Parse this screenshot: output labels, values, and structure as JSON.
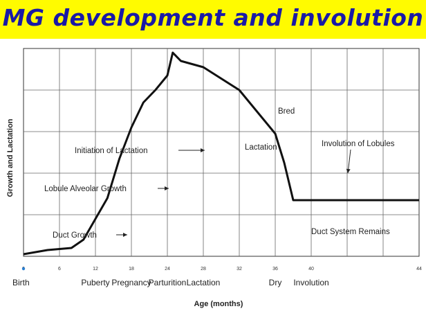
{
  "title": "MG development and involution",
  "chart_data": {
    "type": "line",
    "xlabel": "Age (months)",
    "ylabel": "Growth and Lactation",
    "xlim": [
      0,
      64
    ],
    "ylim": [
      0,
      10
    ],
    "grid": true,
    "x_ticks": [
      {
        "value": 0,
        "label": "0",
        "stage": "Birth"
      },
      {
        "value": 6,
        "label": "6",
        "stage": ""
      },
      {
        "value": 12,
        "label": "12",
        "stage": "Puberty"
      },
      {
        "value": 18,
        "label": "18",
        "stage": "Pregnancy"
      },
      {
        "value": 24,
        "label": "24",
        "stage": "Parturition"
      },
      {
        "value": 28,
        "label": "28",
        "stage": "Lactation"
      },
      {
        "value": 32,
        "label": "32",
        "stage": ""
      },
      {
        "value": 36,
        "label": "36",
        "stage": "Dry"
      },
      {
        "value": 40,
        "label": "40",
        "stage": "Involution"
      },
      {
        "value": 44,
        "label": "44",
        "stage": ""
      }
    ],
    "series": [
      {
        "name": "",
        "points": [
          [
            0,
            0.1
          ],
          [
            4,
            0.3
          ],
          [
            8,
            0.4
          ],
          [
            10,
            0.8
          ],
          [
            12,
            1.8
          ],
          [
            14,
            2.8
          ],
          [
            16,
            4.7
          ],
          [
            18,
            6.2
          ],
          [
            20,
            7.4
          ],
          [
            22,
            8.0
          ],
          [
            24,
            8.7
          ],
          [
            24.6,
            9.8
          ],
          [
            25.5,
            9.4
          ],
          [
            28,
            9.1
          ],
          [
            32,
            8.0
          ],
          [
            36,
            5.9
          ],
          [
            37,
            4.5
          ],
          [
            38,
            2.7
          ],
          [
            40,
            2.7
          ],
          [
            44,
            2.7
          ]
        ]
      }
    ],
    "annotations": [
      {
        "text": "Duct Growth",
        "x": 11,
        "y": 1.5
      },
      {
        "text": "Lobule Alveolar Growth",
        "x": 15.5,
        "y": 4.2
      },
      {
        "text": "Initiation of Lactation",
        "x": 20,
        "y": 7.2
      },
      {
        "text": "Lactation",
        "x": 28,
        "y": 8.0
      },
      {
        "text": "Bred",
        "x": 27,
        "y": 9.9
      },
      {
        "text": "Involution of Lobules",
        "x": 36.5,
        "y": 5.9
      },
      {
        "text": "Duct System Remains",
        "x": 40,
        "y": 2.7
      }
    ]
  }
}
